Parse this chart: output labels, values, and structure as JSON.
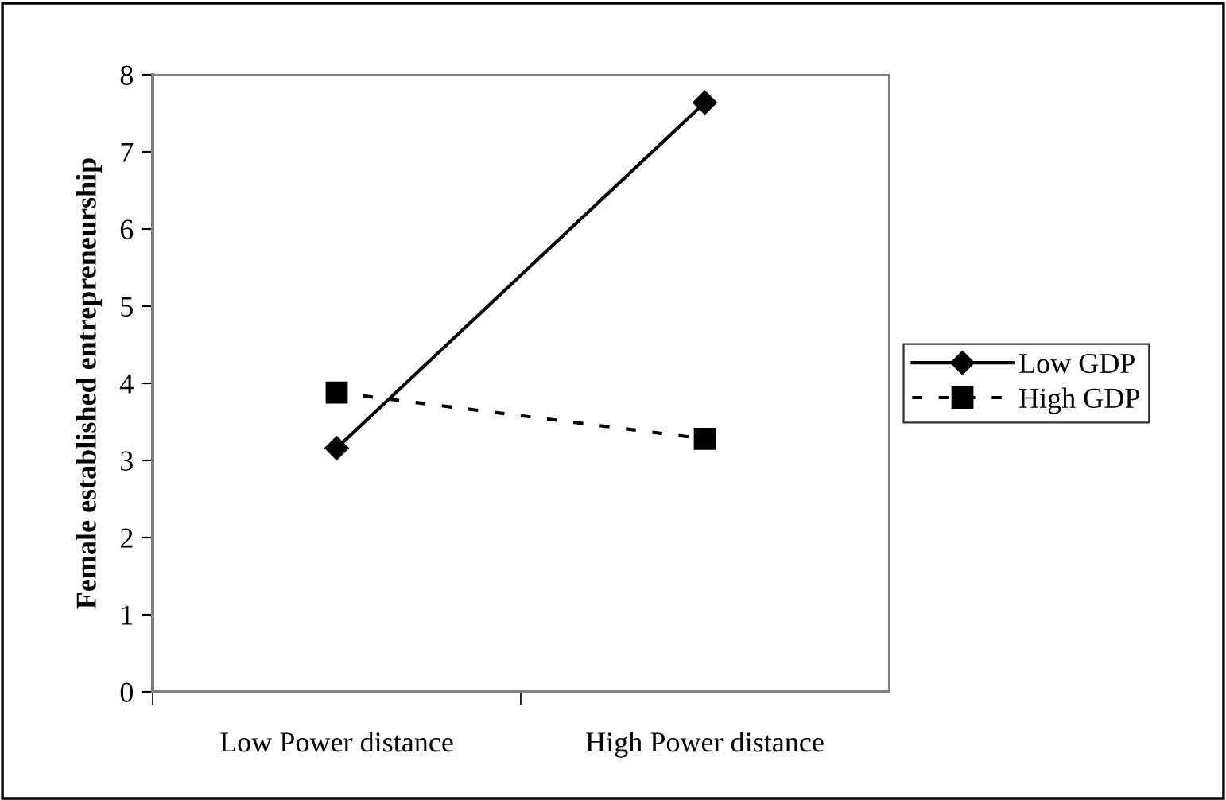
{
  "chart_data": {
    "type": "line",
    "ylabel": "Female established entrepreneurship",
    "categories": [
      "Low Power distance",
      "High Power distance"
    ],
    "series": [
      {
        "name": "Low GDP",
        "color": "#000000",
        "values": [
          3.16,
          7.64
        ],
        "marker": "diamond",
        "line_style": "solid"
      },
      {
        "name": "High GDP",
        "color": "#000000",
        "values": [
          3.88,
          3.28
        ],
        "marker": "square",
        "line_style": "dashed"
      }
    ],
    "ylim": [
      0,
      8
    ],
    "yticks": [
      0,
      1,
      2,
      3,
      4,
      5,
      6,
      7,
      8
    ],
    "grid": false,
    "legend": "right"
  }
}
